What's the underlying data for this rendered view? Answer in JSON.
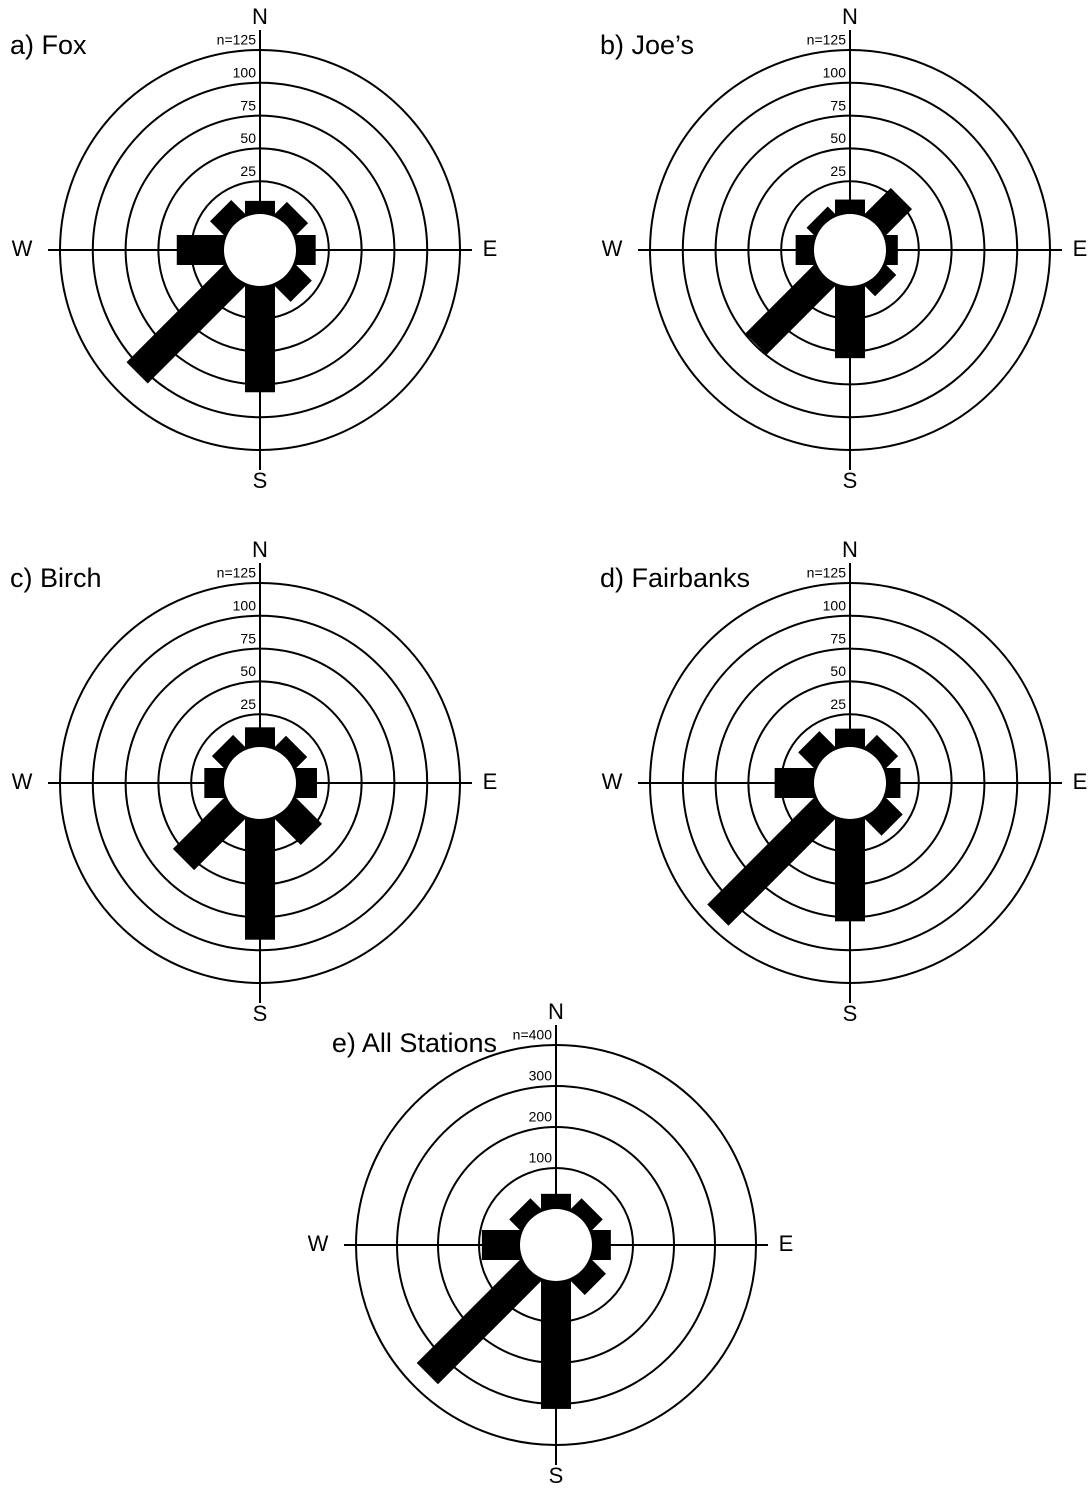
{
  "chart_data": [
    {
      "type": "rose",
      "title": "a) Fox",
      "categories": [
        "N",
        null,
        "E",
        null,
        "S",
        null,
        "W",
        null
      ],
      "values": [
        10,
        13,
        15,
        17,
        81,
        105,
        36,
        15
      ],
      "color": "#000000",
      "rlim": [
        0,
        125
      ],
      "rticks": [
        {
          "value": 125,
          "label": "n=125"
        },
        100,
        75,
        50,
        25
      ]
    },
    {
      "type": "rose",
      "title": "b) Joe’s",
      "categories": [
        "N",
        null,
        "E",
        null,
        "S",
        null,
        "W",
        null
      ],
      "values": [
        11,
        28,
        9,
        11,
        55,
        74,
        14,
        8
      ],
      "color": "#000000",
      "rlim": [
        0,
        125
      ],
      "rticks": [
        {
          "value": 125,
          "label": "n=125"
        },
        100,
        75,
        50,
        25
      ]
    },
    {
      "type": "rose",
      "title": "c) Birch",
      "categories": [
        "N",
        null,
        "E",
        null,
        "S",
        null,
        "W",
        null
      ],
      "values": [
        15,
        12,
        16,
        28,
        92,
        55,
        15,
        13
      ],
      "color": "#000000",
      "rlim": [
        0,
        125
      ],
      "rticks": [
        {
          "value": 125,
          "label": "n=125"
        },
        100,
        75,
        50,
        25
      ]
    },
    {
      "type": "rose",
      "title": "d) Fairbanks",
      "categories": [
        "N",
        null,
        "E",
        null,
        "S",
        null,
        "W",
        null
      ],
      "values": [
        14,
        13,
        11,
        18,
        78,
        115,
        30,
        17
      ],
      "color": "#000000",
      "rlim": [
        0,
        125
      ],
      "rticks": [
        {
          "value": 125,
          "label": "n=125"
        },
        100,
        75,
        50,
        25
      ]
    },
    {
      "type": "rose",
      "title": "e) All Stations",
      "categories": [
        "N",
        null,
        "E",
        null,
        "S",
        null,
        "W",
        null
      ],
      "values": [
        37,
        37,
        46,
        48,
        312,
        356,
        93,
        37
      ],
      "color": "#000000",
      "rlim": [
        0,
        400
      ],
      "rticks": [
        {
          "value": 400,
          "label": "n=400"
        },
        300,
        200,
        100
      ]
    }
  ]
}
